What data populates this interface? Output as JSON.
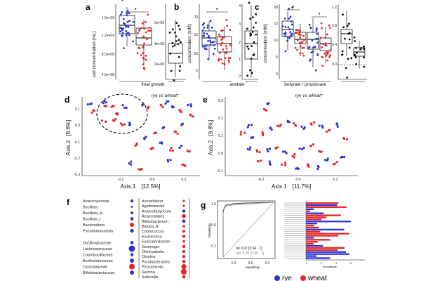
{
  "panels": {
    "a": {
      "label": "a",
      "ylabel": "cell concentration (mL)",
      "yticks_left": [
        "4.0e+08",
        "8.0e+08",
        "1.2e+09",
        "1.6e+09"
      ],
      "yticks_right": [
        "2e+08",
        "4e+08",
        "6e+08"
      ],
      "xlabel": "final growth"
    },
    "b": {
      "label": "b",
      "ylabel": "concentration (mM)",
      "yticks_left": [
        "5",
        "10",
        "15",
        "20"
      ],
      "yticks_right": [
        "0",
        "1",
        "2",
        "3",
        "4"
      ],
      "xlabel": "acetate"
    },
    "c": {
      "label": "c",
      "ylabel": "concentration (mM)",
      "yticks_left": [
        "0",
        "5",
        "10",
        "15",
        "20"
      ],
      "yticks_right": [
        "0.0",
        "0.4",
        "0.8",
        "1.2"
      ],
      "xlabel": "butyrate / propionate"
    },
    "d": {
      "label": "d",
      "annotation": "rye vs wheat",
      "star": "*",
      "xlabel": "Axis.1",
      "xlabel_pct": "[12.5%]",
      "ylabel": "Axis.2",
      "ylabel_pct": "[8.6%]",
      "xticks": [
        "-0.2",
        "0.0",
        "0.2"
      ],
      "yticks": [
        "0.1",
        "0.0",
        "-0.1",
        "-0.2",
        "-0.3"
      ]
    },
    "e": {
      "label": "e",
      "annotation": "rye vs wheat",
      "star": "*",
      "xlabel": "Axis.1",
      "xlabel_pct": "[11.7%]",
      "ylabel": "Axis.2",
      "ylabel_pct": "[9.8%]",
      "xticks": [
        "-0.2",
        "0.0",
        "0.2"
      ],
      "yticks": [
        "0.3",
        "0.2",
        "0.1",
        "0.0",
        "-0.1"
      ]
    },
    "f": {
      "label": "f",
      "left_taxa": [
        "Actinomycetota",
        "Bacillota",
        "Bacillota_A",
        "Bacillota_I",
        "Bacteroidota",
        "Pseudomonadota",
        "",
        "Oscillospiraceae",
        "Lachnospiraceae",
        "Coprobacillaceae",
        "Burkholderiaceae",
        "Clostridiaceae",
        "Bifidobacteriaceae"
      ],
      "left_colors": [
        "#3333cc",
        "#3333cc",
        "#3333cc",
        "#3333cc",
        "#e3262b",
        "#3333cc",
        "",
        "#3333cc",
        "#3333cc",
        "#3333cc",
        "#3333cc",
        "#e3262b",
        "#3333cc"
      ],
      "left_sizes": [
        2.2,
        1.4,
        2,
        2.4,
        3,
        2.6,
        0,
        2.3,
        4.5,
        2.2,
        3,
        4,
        3
      ],
      "right_taxa": [
        "Acetatifactor",
        "Agathobacter",
        "Anaerobutyricum",
        "Anaerostipes",
        "Bifidobacterium",
        "Blautia_A",
        "Coprococcus",
        "Escherichia",
        "Fusicatenibacter",
        "Gemmiger",
        "Oliverpabstia",
        "Otoolea",
        "Parabacteroides",
        "Phocaeicola",
        "Sarcina",
        "Sutterella"
      ],
      "right_colors": [
        "#e3262b",
        "#e3262b",
        "#3333cc",
        "#e3262b",
        "#3333cc",
        "#e3262b",
        "#e3262b",
        "#e3262b",
        "#e3262b",
        "#e3262b",
        "#e3262b",
        "#e3262b",
        "#e3262b",
        "#e3262b",
        "#e3262b",
        "#e3262b"
      ],
      "right_sizes": [
        1.6,
        1.6,
        2.2,
        2.8,
        2.4,
        1.8,
        2,
        2.2,
        1.8,
        2.2,
        2.2,
        2.2,
        2.4,
        3.6,
        4.2,
        2.4
      ]
    },
    "g": {
      "label": "g",
      "ylabel": "Sensitivity",
      "xlabel": "Specificity",
      "xticks": [
        "1.0",
        "0.6",
        "0.2"
      ],
      "yticks": [
        "0.2",
        "0.6",
        "1.0"
      ],
      "auc_rel": "rel 0.97 [0.94 - 1]",
      "auc_abs": "abs 0.95 [0.90 - 1]",
      "importance_label": "importance",
      "importance_ticks": [
        "0",
        "2",
        "4",
        "6"
      ]
    }
  },
  "legend": {
    "rye": "rye",
    "wheat": "wheat",
    "rye_color": "#2b33d6",
    "wheat_color": "#e3262b"
  }
}
